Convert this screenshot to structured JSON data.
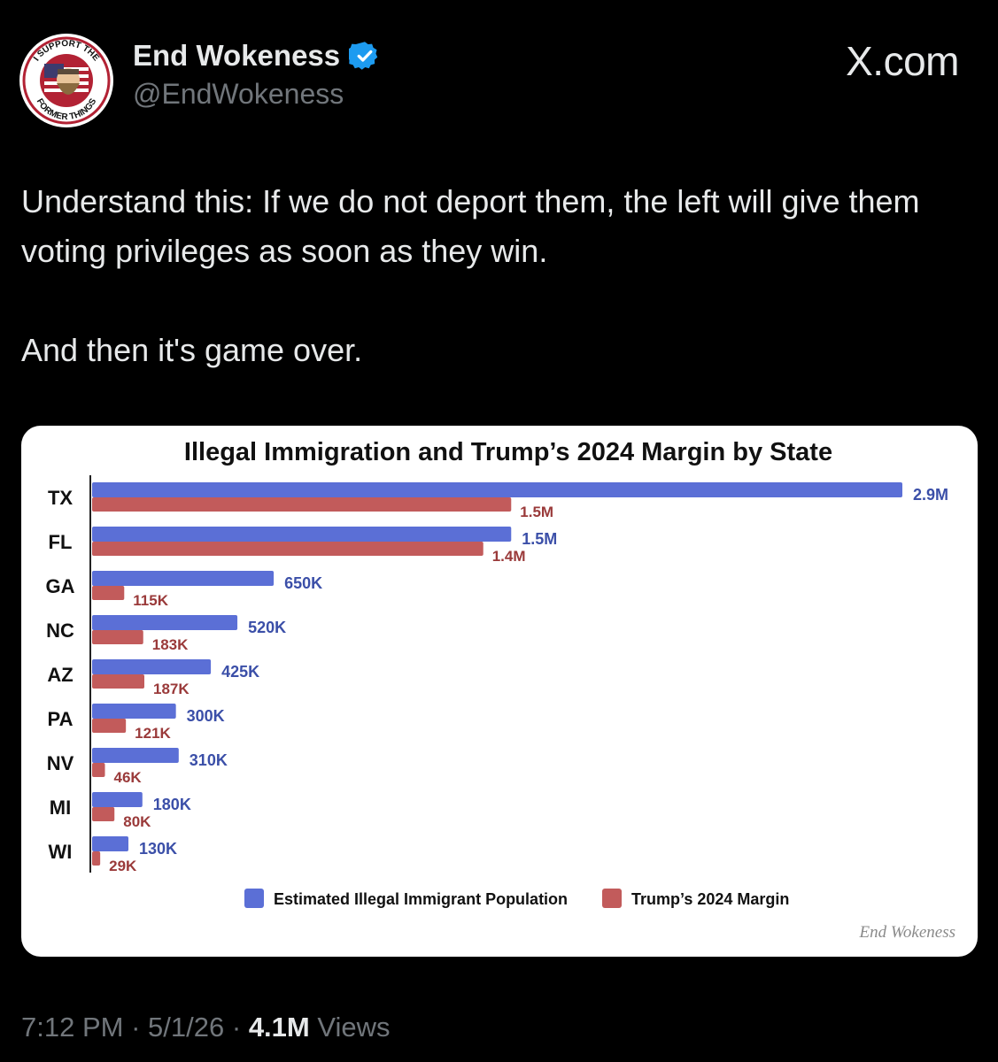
{
  "header": {
    "display_name": "End Wokeness",
    "handle": "@EndWokeness",
    "brand": "X.com",
    "avatar_text_top": "I SUPPORT THE",
    "avatar_text_bottom": "FORMER THINGS"
  },
  "post": {
    "line1": "Understand this: If we do not deport them, the left will give them voting privileges as soon as they win.",
    "line2": "And then it's game over."
  },
  "meta": {
    "time": "7:12 PM",
    "separator": "·",
    "date": "5/1/26",
    "views_count": "4.1M",
    "views_label": "Views"
  },
  "colors": {
    "blue": "#5b6fd6",
    "red": "#c25b5b",
    "label_blue": "#3b4fa8",
    "label_red": "#9a3a3a"
  },
  "chart_data": {
    "type": "bar",
    "orientation": "horizontal",
    "title": "Illegal Immigration and Trump’s 2024 Margin by State",
    "categories": [
      "TX",
      "FL",
      "GA",
      "NC",
      "AZ",
      "PA",
      "NV",
      "MI",
      "WI"
    ],
    "series": [
      {
        "name": "Estimated Illegal Immigrant Population",
        "values": [
          2900000,
          1500000,
          650000,
          520000,
          425000,
          300000,
          310000,
          180000,
          130000
        ],
        "labels": [
          "2.9M",
          "1.5M",
          "650K",
          "520K",
          "425K",
          "300K",
          "310K",
          "180K",
          "130K"
        ]
      },
      {
        "name": "Trump’s 2024 Margin",
        "values": [
          1500000,
          1400000,
          115000,
          183000,
          187000,
          121000,
          46000,
          80000,
          29000
        ],
        "labels": [
          "1.5M",
          "1.4M",
          "115K",
          "183K",
          "187K",
          "121K",
          "46K",
          "80K",
          "29K"
        ]
      }
    ],
    "xlim": [
      0,
      2900000
    ],
    "grid": false,
    "legend_position": "bottom",
    "watermark": "End Wokeness"
  }
}
